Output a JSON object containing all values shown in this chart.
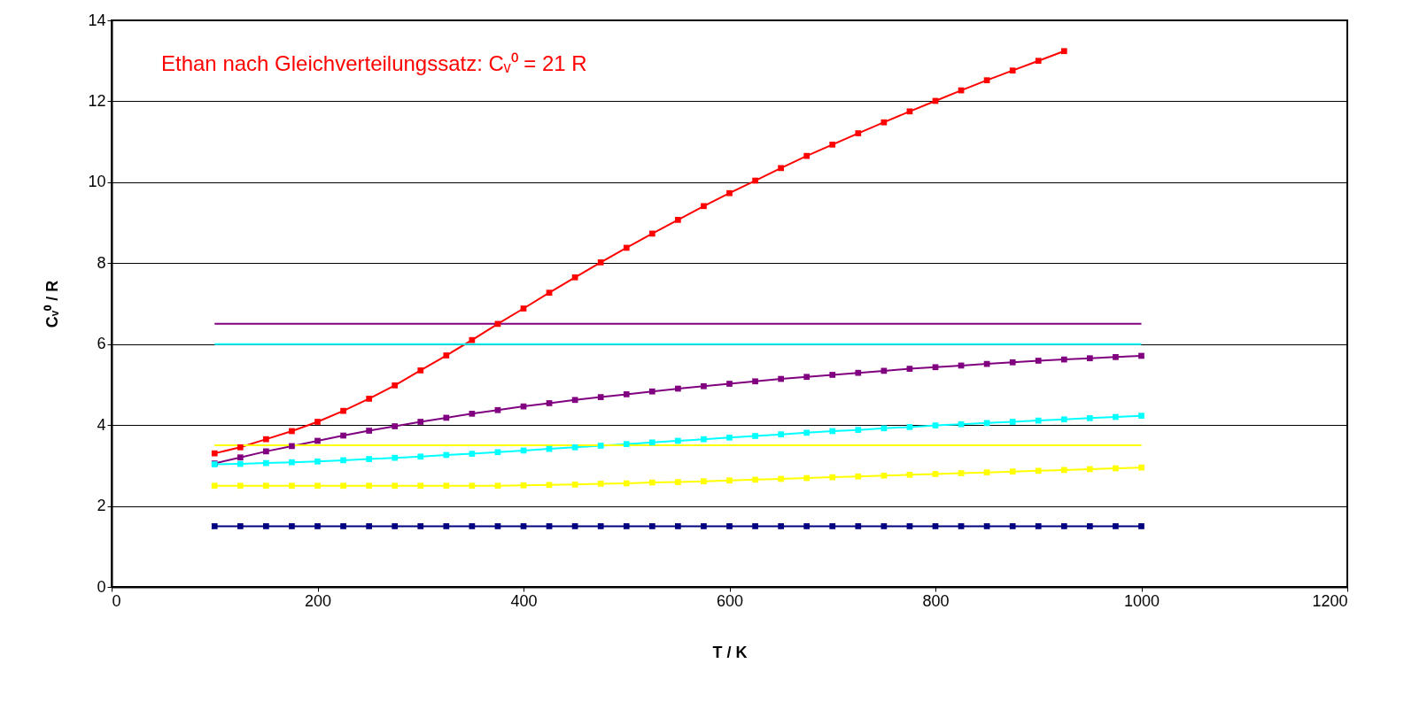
{
  "chart_data": {
    "type": "line",
    "xlabel": "T / K",
    "ylabel": "Cᵥ⁰ / R",
    "annotations": [
      "Ethan nach Gleichverteilungssatz: Cᵥ⁰ = 21 R"
    ],
    "xlim": [
      0,
      1200
    ],
    "xticks": [
      0,
      200,
      400,
      600,
      800,
      1000,
      1200
    ],
    "ylim": [
      0,
      14
    ],
    "yticks": [
      0,
      2,
      4,
      6,
      8,
      10,
      12,
      14
    ],
    "grid": "y",
    "legend": false,
    "marker": "square",
    "line_style": "solid",
    "x": [
      100,
      125,
      150,
      175,
      200,
      225,
      250,
      275,
      300,
      325,
      350,
      375,
      400,
      425,
      450,
      475,
      500,
      525,
      550,
      575,
      600,
      625,
      650,
      675,
      700,
      725,
      750,
      775,
      800,
      825,
      850,
      875,
      900,
      925,
      950,
      975,
      1000
    ],
    "series": [
      {
        "color": "#ff0000",
        "x": [
          100,
          125,
          150,
          175,
          200,
          225,
          250,
          275,
          300,
          325,
          350,
          375,
          400,
          425,
          450,
          475,
          500,
          525,
          550,
          575,
          600,
          625,
          650,
          675,
          700,
          725,
          750,
          775,
          800,
          825,
          850,
          875,
          900,
          925
        ],
        "values": [
          3.3,
          3.45,
          3.65,
          3.85,
          4.08,
          4.35,
          4.65,
          4.98,
          5.35,
          5.72,
          6.1,
          6.5,
          6.88,
          7.27,
          7.65,
          8.02,
          8.38,
          8.73,
          9.07,
          9.41,
          9.73,
          10.04,
          10.35,
          10.65,
          10.93,
          11.21,
          11.48,
          11.75,
          12.01,
          12.27,
          12.52,
          12.76,
          13.0,
          13.24
        ]
      },
      {
        "color": "#800080",
        "values": [
          3.05,
          3.2,
          3.35,
          3.48,
          3.61,
          3.74,
          3.86,
          3.97,
          4.08,
          4.18,
          4.28,
          4.37,
          4.46,
          4.54,
          4.62,
          4.69,
          4.76,
          4.83,
          4.9,
          4.96,
          5.02,
          5.08,
          5.14,
          5.19,
          5.24,
          5.29,
          5.34,
          5.39,
          5.43,
          5.47,
          5.51,
          5.55,
          5.59,
          5.62,
          5.65,
          5.68,
          5.71
        ]
      },
      {
        "color": "#00ffff",
        "values": [
          3.03,
          3.04,
          3.06,
          3.08,
          3.1,
          3.13,
          3.16,
          3.19,
          3.22,
          3.26,
          3.29,
          3.33,
          3.37,
          3.41,
          3.45,
          3.49,
          3.53,
          3.57,
          3.61,
          3.65,
          3.69,
          3.73,
          3.77,
          3.81,
          3.85,
          3.88,
          3.92,
          3.95,
          3.99,
          4.02,
          4.05,
          4.08,
          4.11,
          4.14,
          4.17,
          4.2,
          4.23
        ]
      },
      {
        "color": "#ffff00",
        "values": [
          2.5,
          2.5,
          2.5,
          2.5,
          2.5,
          2.5,
          2.5,
          2.5,
          2.5,
          2.5,
          2.5,
          2.5,
          2.51,
          2.52,
          2.53,
          2.55,
          2.56,
          2.58,
          2.59,
          2.61,
          2.63,
          2.65,
          2.67,
          2.69,
          2.71,
          2.73,
          2.75,
          2.77,
          2.79,
          2.81,
          2.83,
          2.85,
          2.87,
          2.89,
          2.91,
          2.93,
          2.95
        ]
      },
      {
        "color": "#000080",
        "values": [
          1.5,
          1.5,
          1.5,
          1.5,
          1.5,
          1.5,
          1.5,
          1.5,
          1.5,
          1.5,
          1.5,
          1.5,
          1.5,
          1.5,
          1.5,
          1.5,
          1.5,
          1.5,
          1.5,
          1.5,
          1.5,
          1.5,
          1.5,
          1.5,
          1.5,
          1.5,
          1.5,
          1.5,
          1.5,
          1.5,
          1.5,
          1.5,
          1.5,
          1.5,
          1.5,
          1.5,
          1.5
        ]
      },
      {
        "color": "#800080",
        "marker": "none",
        "x": [
          100,
          1000
        ],
        "values": [
          6.5,
          6.5
        ]
      },
      {
        "color": "#00ffff",
        "marker": "none",
        "x": [
          100,
          1000
        ],
        "values": [
          6.0,
          6.0
        ]
      },
      {
        "color": "#ffff00",
        "marker": "none",
        "x": [
          100,
          1000
        ],
        "values": [
          3.5,
          3.5
        ]
      }
    ]
  }
}
